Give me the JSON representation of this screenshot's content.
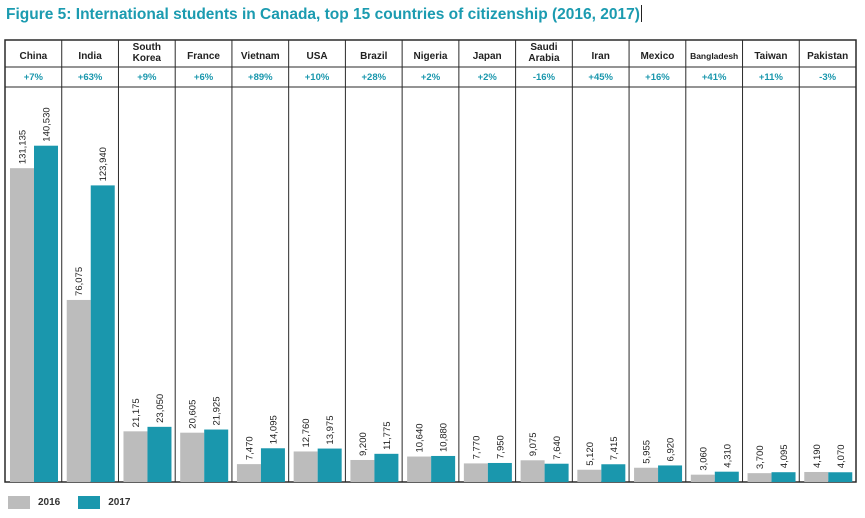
{
  "title": "Figure 5: International students in Canada, top 15 countries of citizenship (2016, 2017)",
  "colors": {
    "s2016": "#bcbcbc",
    "s2017": "#1a97ad",
    "change": "#1a97ad",
    "border": "#2a2a2a",
    "grid": "#d0d0d0"
  },
  "chart_data": {
    "type": "bar",
    "title": "Figure 5: International students in Canada, top 15 countries of citizenship (2016, 2017)",
    "categories": [
      [
        "China"
      ],
      [
        "India"
      ],
      [
        "South",
        "Korea"
      ],
      [
        "France"
      ],
      [
        "Vietnam"
      ],
      [
        "USA"
      ],
      [
        "Brazil"
      ],
      [
        "Nigeria"
      ],
      [
        "Japan"
      ],
      [
        "Saudi",
        "Arabia"
      ],
      [
        "Iran"
      ],
      [
        "Mexico"
      ],
      [
        "Bangladesh"
      ],
      [
        "Taiwan"
      ],
      [
        "Pakistan"
      ]
    ],
    "changes": [
      "+7%",
      "+63%",
      "+9%",
      "+6%",
      "+89%",
      "+10%",
      "+28%",
      "+2%",
      "+2%",
      "-16%",
      "+45%",
      "+16%",
      "+41%",
      "+11%",
      "-3%"
    ],
    "series": [
      {
        "name": "2016",
        "values": [
          131135,
          76075,
          21175,
          20605,
          7470,
          12760,
          9200,
          10640,
          7770,
          9075,
          5120,
          5955,
          3060,
          3700,
          4190
        ],
        "labels": [
          "131,135",
          "76,075",
          "21,175",
          "20,605",
          "7,470",
          "12,760",
          "9,200",
          "10,640",
          "7,770",
          "9,075",
          "5,120",
          "5,955",
          "3,060",
          "3,700",
          "4,190"
        ]
      },
      {
        "name": "2017",
        "values": [
          140530,
          123940,
          23050,
          21925,
          14095,
          13975,
          11775,
          10880,
          7950,
          7640,
          7415,
          6920,
          4310,
          4095,
          4070
        ],
        "labels": [
          "140,530",
          "123,940",
          "23,050",
          "21,925",
          "14,095",
          "13,975",
          "11,775",
          "10,880",
          "7,950",
          "7,640",
          "7,415",
          "6,920",
          "4,310",
          "4,095",
          "4,070"
        ]
      }
    ],
    "ylim": [
      0,
      145000
    ],
    "legend": [
      "2016",
      "2017"
    ],
    "legend_position": "bottom-left",
    "grid": false
  }
}
